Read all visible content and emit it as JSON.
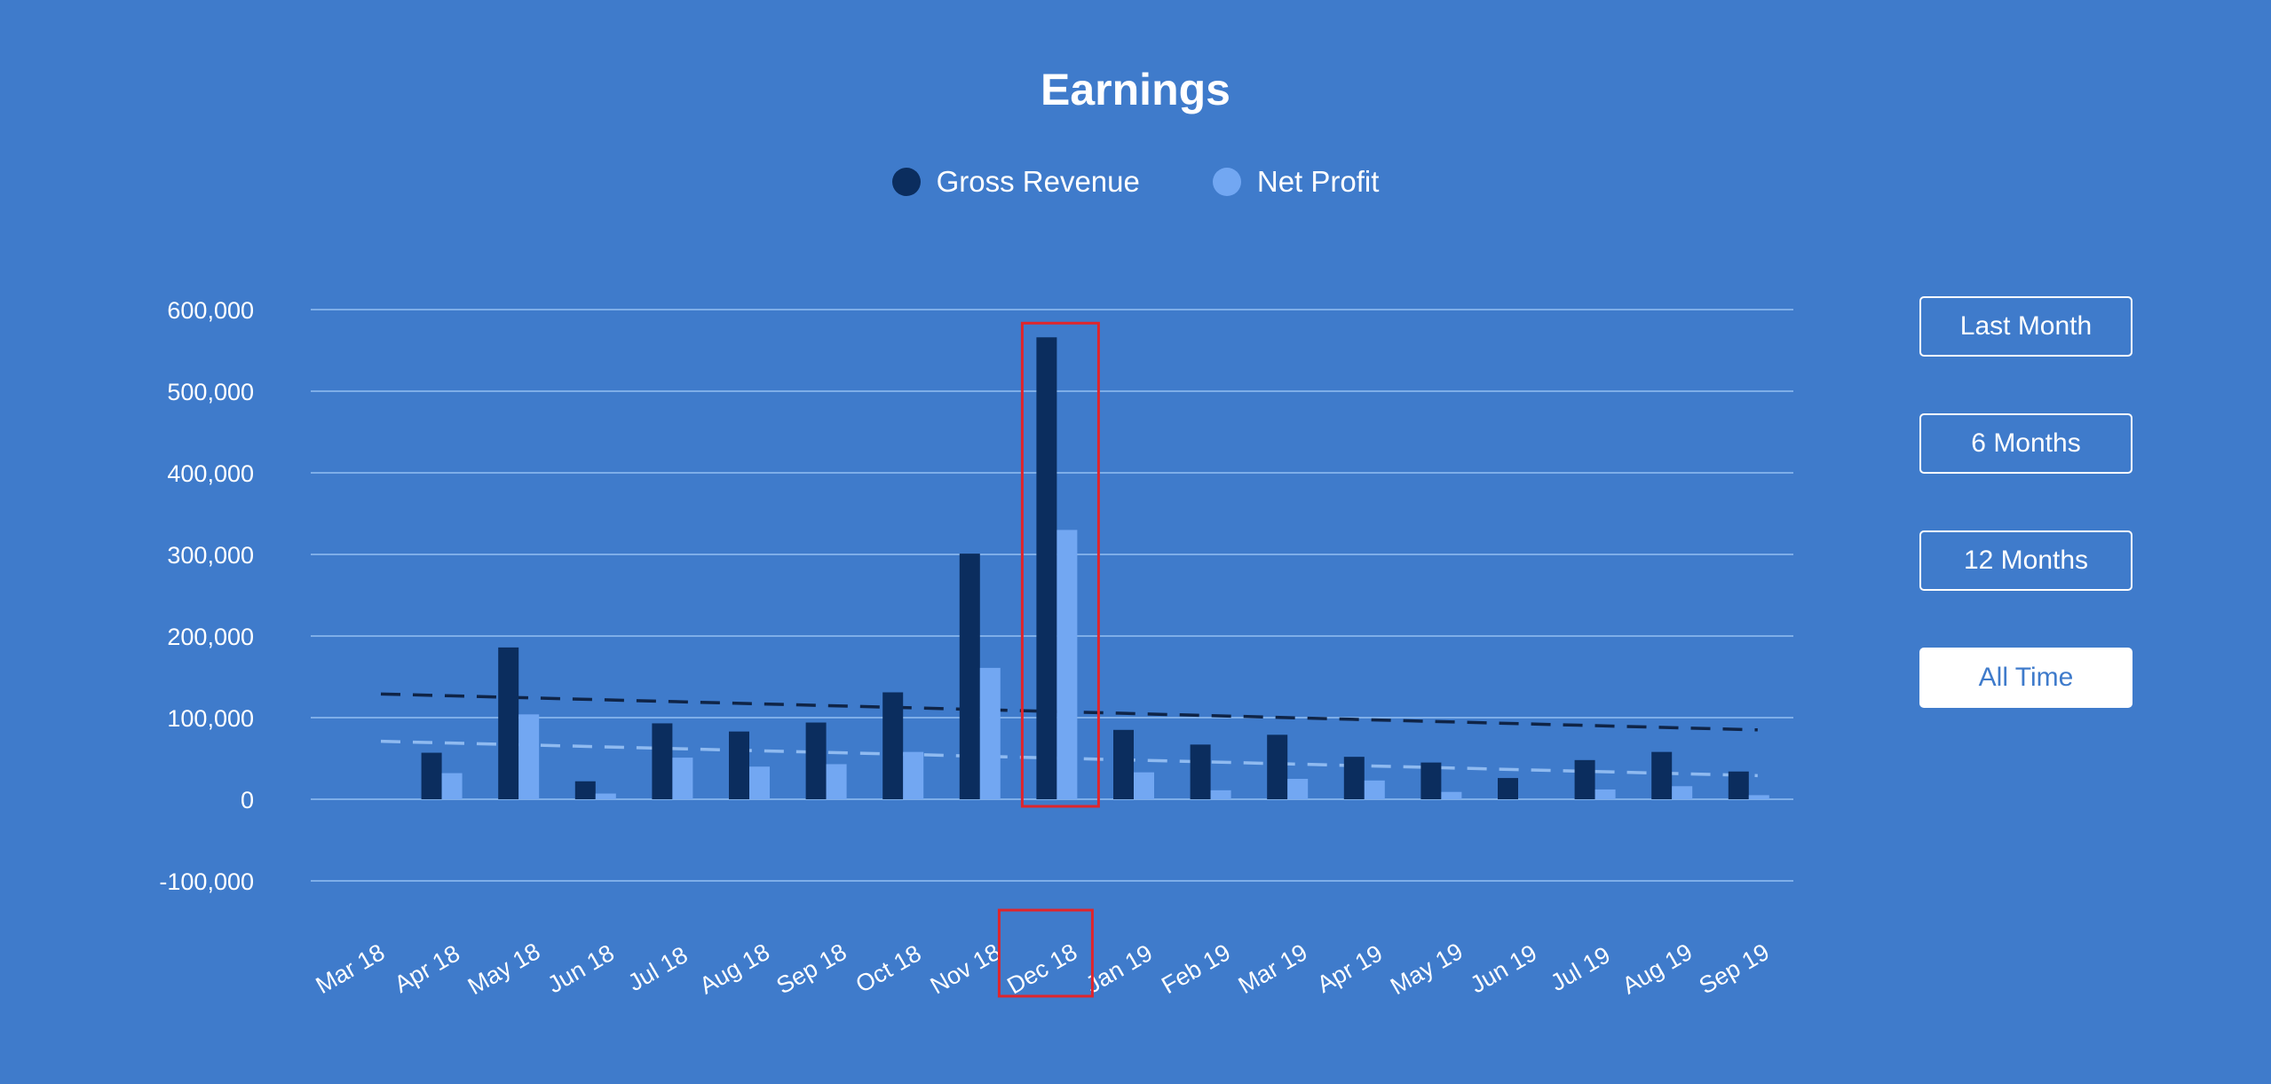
{
  "colors": {
    "background": "#3f7bcb",
    "gross_revenue": "#0b2d5e",
    "net_profit": "#72a7f2",
    "grid": "#7eaee8",
    "highlight": "#e0252b",
    "gross_trend": "#0f2447",
    "net_trend": "#8fbaf0"
  },
  "range_buttons": [
    {
      "label": "Last Month",
      "active": false
    },
    {
      "label": "6 Months",
      "active": false
    },
    {
      "label": "12 Months",
      "active": false
    },
    {
      "label": "All Time",
      "active": true
    }
  ],
  "chart_data": {
    "type": "bar",
    "title": "Earnings",
    "xlabel": "",
    "ylabel": "",
    "legend_position": "top-center",
    "grid": true,
    "ylim": [
      -100000,
      600000
    ],
    "yticks": [
      {
        "value": 600000,
        "label": "600,000"
      },
      {
        "value": 500000,
        "label": "500,000"
      },
      {
        "value": 400000,
        "label": "400,000"
      },
      {
        "value": 300000,
        "label": "300,000"
      },
      {
        "value": 200000,
        "label": "200,000"
      },
      {
        "value": 100000,
        "label": "100,000"
      },
      {
        "value": 0,
        "label": "0"
      },
      {
        "value": -100000,
        "label": "-100,000"
      }
    ],
    "categories": [
      "Mar 18",
      "Apr 18",
      "May 18",
      "Jun 18",
      "Jul 18",
      "Aug 18",
      "Sep 18",
      "Oct 18",
      "Nov 18",
      "Dec 18",
      "Jan 19",
      "Feb 19",
      "Mar 19",
      "Apr 19",
      "May 19",
      "Jun 19",
      "Jul 19",
      "Aug 19",
      "Sep 19"
    ],
    "series": [
      {
        "name": "Gross Revenue",
        "values": [
          0,
          57000,
          186000,
          22000,
          93000,
          83000,
          94000,
          131000,
          301000,
          566000,
          85000,
          67000,
          79000,
          52000,
          45000,
          26000,
          48000,
          58000,
          34000
        ]
      },
      {
        "name": "Net Profit",
        "values": [
          0,
          32000,
          104000,
          7000,
          51000,
          40000,
          43000,
          58000,
          161000,
          330000,
          33000,
          11000,
          25000,
          23000,
          9000,
          0,
          12000,
          16000,
          5000
        ]
      }
    ],
    "trendlines": [
      {
        "series": "Gross Revenue",
        "start": 129000,
        "end": 85000
      },
      {
        "series": "Net Profit",
        "start": 71000,
        "end": 29000
      }
    ],
    "highlight_category": "Dec 18"
  }
}
